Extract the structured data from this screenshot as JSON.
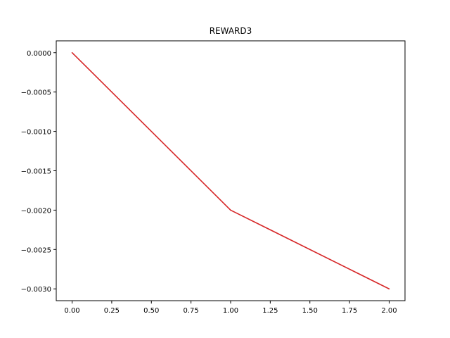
{
  "chart_data": {
    "type": "line",
    "title": "REWARD3",
    "xlabel": "",
    "ylabel": "",
    "xlim": [
      -0.1,
      2.1
    ],
    "ylim": [
      -0.00315,
      0.00015
    ],
    "xticks": [
      0.0,
      0.25,
      0.5,
      0.75,
      1.0,
      1.25,
      1.5,
      1.75,
      2.0
    ],
    "xtick_labels": [
      "0.00",
      "0.25",
      "0.50",
      "0.75",
      "1.00",
      "1.25",
      "1.50",
      "1.75",
      "2.00"
    ],
    "yticks": [
      0.0,
      -0.0005,
      -0.001,
      -0.0015,
      -0.002,
      -0.0025,
      -0.003
    ],
    "ytick_labels": [
      "0.0000",
      "−0.0005",
      "−0.0010",
      "−0.0015",
      "−0.0020",
      "−0.0025",
      "−0.0030"
    ],
    "grid": false,
    "series": [
      {
        "x": [
          0,
          1,
          2
        ],
        "values": [
          0.0,
          -0.002,
          -0.003
        ],
        "color": "#d62728"
      }
    ]
  }
}
